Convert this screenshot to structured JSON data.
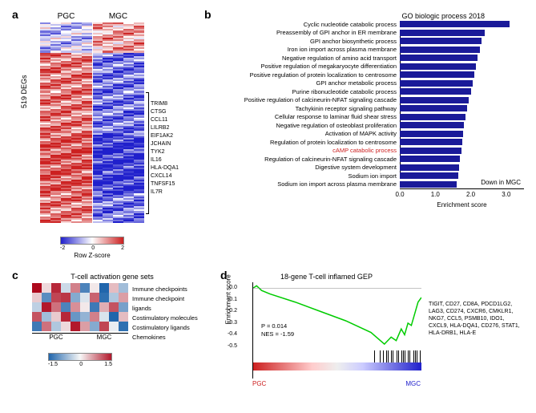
{
  "panel_a": {
    "label": "a",
    "groups": [
      "PGC",
      "MGC"
    ],
    "ylabel": "519 DEGs",
    "type": "heatmap",
    "n_samples_per_group": [
      5,
      5
    ],
    "genes_highlighted": [
      "TRIM8",
      "CTSG",
      "CCL11",
      "LILRB2",
      "EIF1AK2",
      "JCHAIN",
      "TYK2",
      "IL16",
      "HLA-DQA1",
      "CXCL14",
      "TNFSF15",
      "IL7R"
    ],
    "colorbar": {
      "min": -2,
      "mid": 0,
      "max": 2,
      "label": "Row Z-score",
      "low_color": "#2020cc",
      "mid_color": "#ffffff",
      "high_color": "#cc2020"
    }
  },
  "panel_b": {
    "label": "b",
    "title": "GO biologic process 2018",
    "type": "bar",
    "bar_color": "#1a1a99",
    "xlabel": "Enrichment score",
    "xlim": [
      0,
      3.5
    ],
    "xtick_step": 1.0,
    "note": "Down in MGC",
    "terms": [
      {
        "label": "Cyclic nucleotide catabolic process",
        "score": 3.1
      },
      {
        "label": "Preassembly of GPI anchor in ER membrane",
        "score": 2.4
      },
      {
        "label": "GPI anchor biosynthetic process",
        "score": 2.3
      },
      {
        "label": "Iron ion import across plasma membrane",
        "score": 2.25
      },
      {
        "label": "Negative regulation of amino acid transport",
        "score": 2.2
      },
      {
        "label": "Positive regulation of megakaryocyte differentiation",
        "score": 2.15
      },
      {
        "label": "Positive regulation of protein localization to centrosome",
        "score": 2.1
      },
      {
        "label": "GPI anchor metabolic process",
        "score": 2.05
      },
      {
        "label": "Purine ribonucleotide catabolic process",
        "score": 2.0
      },
      {
        "label": "Positive regulation of calcineurin-NFAT signaling cascade",
        "score": 1.95
      },
      {
        "label": "Tachykinin receptor signaling pathway",
        "score": 1.9
      },
      {
        "label": "Cellular response to laminar fluid shear stress",
        "score": 1.85
      },
      {
        "label": "Negative regulation of osteoblast proliferation",
        "score": 1.8
      },
      {
        "label": "Activation of MAPK activity",
        "score": 1.78
      },
      {
        "label": "Regulation of protein localization to centrosome",
        "score": 1.75
      },
      {
        "label": "cAMP catabolic process",
        "score": 1.73,
        "highlight": true
      },
      {
        "label": "Regulation of calcineurin-NFAT signaling cascade",
        "score": 1.7
      },
      {
        "label": "Digestive system development",
        "score": 1.68
      },
      {
        "label": "Sodium ion import",
        "score": 1.65
      },
      {
        "label": "Sodium ion import across plasma membrane",
        "score": 1.6
      }
    ]
  },
  "panel_c": {
    "label": "c",
    "title": "T-cell activation gene sets",
    "type": "heatmap",
    "groups": [
      "PGC",
      "MGC"
    ],
    "n_per_group": [
      5,
      5
    ],
    "rows": [
      "Immune checkpoints",
      "Immune checkpoint ligands",
      "Costimulatory molecules",
      "Costimulatory ligands",
      "Chemokines"
    ],
    "values": [
      [
        1.6,
        0.2,
        1.4,
        -0.3,
        0.8,
        -1.2,
        0.1,
        -1.5,
        0.4,
        -0.6
      ],
      [
        0.3,
        -1.1,
        1.2,
        1.3,
        -0.8,
        -0.2,
        1.0,
        -1.4,
        -0.5,
        0.6
      ],
      [
        -0.4,
        1.5,
        0.9,
        -1.2,
        0.7,
        0.1,
        -1.3,
        0.5,
        1.1,
        -0.9
      ],
      [
        1.1,
        -0.6,
        0.3,
        1.4,
        -1.0,
        -0.7,
        0.8,
        -0.2,
        -1.5,
        0.4
      ],
      [
        -1.3,
        0.9,
        -0.5,
        0.2,
        1.5,
        0.6,
        -0.8,
        1.2,
        -0.1,
        -1.4
      ]
    ],
    "colorbar": {
      "min": -1.5,
      "mid": 0,
      "max": 1.5,
      "low_color": "#2166ac",
      "mid_color": "#f7f7f7",
      "high_color": "#b2182b"
    }
  },
  "panel_d": {
    "label": "d",
    "title": "18-gene T-cell inflamed GEP",
    "type": "gsea",
    "ylabel": "Enrichment score",
    "ylim": [
      -0.5,
      0.05
    ],
    "ytick_step": 0.1,
    "line_color": "#00cc00",
    "p_value": "P = 0.014",
    "nes": "NES = -1.59",
    "xlabels": [
      "PGC",
      "MGC"
    ],
    "curve_points": [
      [
        0,
        0
      ],
      [
        0.02,
        0.02
      ],
      [
        0.05,
        -0.02
      ],
      [
        0.1,
        -0.05
      ],
      [
        0.25,
        -0.12
      ],
      [
        0.4,
        -0.2
      ],
      [
        0.55,
        -0.28
      ],
      [
        0.7,
        -0.38
      ],
      [
        0.78,
        -0.48
      ],
      [
        0.82,
        -0.42
      ],
      [
        0.85,
        -0.45
      ],
      [
        0.88,
        -0.35
      ],
      [
        0.9,
        -0.4
      ],
      [
        0.92,
        -0.3
      ],
      [
        0.94,
        -0.32
      ],
      [
        0.96,
        -0.22
      ],
      [
        0.98,
        -0.12
      ],
      [
        1.0,
        -0.08
      ]
    ],
    "tick_positions": [
      0.72,
      0.75,
      0.77,
      0.79,
      0.8,
      0.82,
      0.83,
      0.85,
      0.86,
      0.88,
      0.89,
      0.9,
      0.92,
      0.93,
      0.95,
      0.96,
      0.97,
      0.99
    ],
    "gene_list": "TIGIT, CD27, CD8A, PDCD1LG2, LAG3, CD274, CXCR6, CMKLR1, NKG7, CCL5, PSMB10, IDO1, CXCL9, HLA-DQA1, CD276, STAT1, HLA-DRB1, HLA-E"
  }
}
